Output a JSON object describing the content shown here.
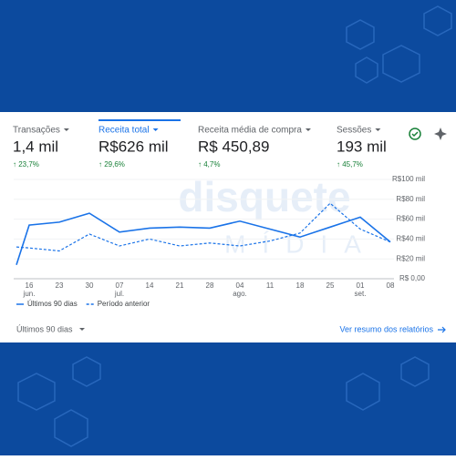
{
  "metrics": [
    {
      "name": "Transações",
      "value": "1,4 mil",
      "change": "↑ 23,7%"
    },
    {
      "name": "Receita total",
      "value": "R$626 mil",
      "change": "↑ 29,6%"
    },
    {
      "name": "Receita média de compra",
      "value": "R$ 450,89",
      "change": "↑ 4,7%"
    },
    {
      "name": "Sessões",
      "value": "193 mil",
      "change": "↑ 45,7%"
    }
  ],
  "watermark": {
    "brand": "disquete",
    "sub": "MÍDIA"
  },
  "footer": {
    "range": "Últimos 90 dias",
    "link": "Ver resumo dos relatórios"
  },
  "chart_data": {
    "type": "line",
    "categories": [
      null,
      "16 jun.",
      "23",
      "30",
      "07 jul.",
      "14",
      "21",
      "28",
      "04 ago.",
      "11",
      "18",
      "25",
      "01 set.",
      "08"
    ],
    "series": [
      {
        "name": "Últimos 90 dias",
        "color": "#1a73e8",
        "dashed": false,
        "values": [
          14,
          54,
          57,
          66,
          47,
          51,
          52,
          51,
          58,
          50,
          42,
          52,
          62,
          37
        ]
      },
      {
        "name": "Período anterior",
        "color": "#1a73e8",
        "dashed": true,
        "values": [
          32,
          31,
          28,
          45,
          33,
          40,
          33,
          36,
          33,
          38,
          46,
          76,
          50,
          37
        ]
      }
    ],
    "ylim": [
      0,
      100
    ],
    "yticks": [
      {
        "value": 0,
        "label": "R$ 0,00"
      },
      {
        "value": 20,
        "label": "R$20 mil"
      },
      {
        "value": 40,
        "label": "R$40 mil"
      },
      {
        "value": 60,
        "label": "R$60 mil"
      },
      {
        "value": 80,
        "label": "R$80 mil"
      },
      {
        "value": 100,
        "label": "R$100 mil"
      }
    ],
    "grid": true
  }
}
